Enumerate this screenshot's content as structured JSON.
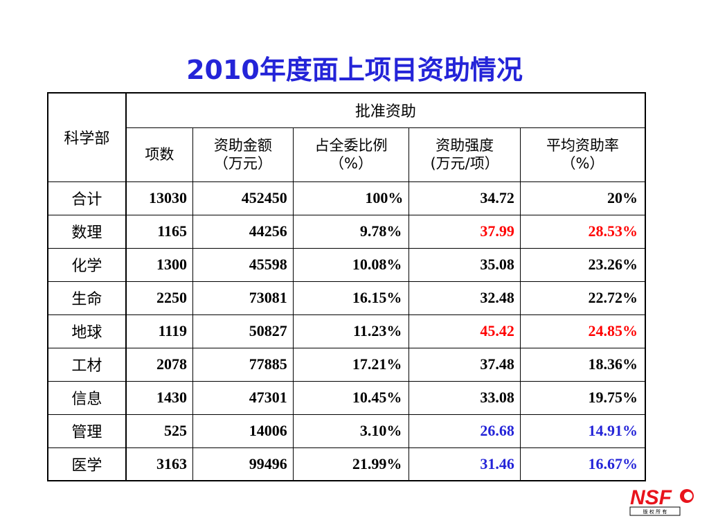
{
  "title": "2010年度面上项目资助情况",
  "table": {
    "dept_header": "科学部",
    "group_header": "批准资助",
    "col_headers": [
      {
        "line1": "项数",
        "line2": ""
      },
      {
        "line1": "资助金额",
        "line2": "（万元）"
      },
      {
        "line1": "占全委比例",
        "line2": "（%）"
      },
      {
        "line1": "资助强度",
        "line2": "(万元/项）"
      },
      {
        "line1": "平均资助率",
        "line2": "（%）"
      }
    ],
    "rows": [
      {
        "dept": "合计",
        "count": "13030",
        "amount": "452450",
        "share": "100%",
        "intensity": "34.72",
        "rate": "20%"
      },
      {
        "dept": "数理",
        "count": "1165",
        "amount": "44256",
        "share": "9.78%",
        "intensity": "37.99",
        "rate": "28.53%"
      },
      {
        "dept": "化学",
        "count": "1300",
        "amount": "45598",
        "share": "10.08%",
        "intensity": "35.08",
        "rate": "23.26%"
      },
      {
        "dept": "生命",
        "count": "2250",
        "amount": "73081",
        "share": "16.15%",
        "intensity": "32.48",
        "rate": "22.72%"
      },
      {
        "dept": "地球",
        "count": "1119",
        "amount": "50827",
        "share": "11.23%",
        "intensity": "45.42",
        "rate": "24.85%"
      },
      {
        "dept": "工材",
        "count": "2078",
        "amount": "77885",
        "share": "17.21%",
        "intensity": "37.48",
        "rate": "18.36%"
      },
      {
        "dept": "信息",
        "count": "1430",
        "amount": "47301",
        "share": "10.45%",
        "intensity": "33.08",
        "rate": "19.75%"
      },
      {
        "dept": "管理",
        "count": "525",
        "amount": "14006",
        "share": "3.10%",
        "intensity": "26.68",
        "rate": "14.91%"
      },
      {
        "dept": "医学",
        "count": "3163",
        "amount": "99496",
        "share": "21.99%",
        "intensity": "31.46",
        "rate": "16.67%"
      }
    ],
    "highlight_colors": {
      "red": "#ff0000",
      "blue": "#2424d8"
    }
  },
  "logo": {
    "text": "NSF",
    "subtext": "版 权 所 有",
    "color": "#e8141c"
  }
}
